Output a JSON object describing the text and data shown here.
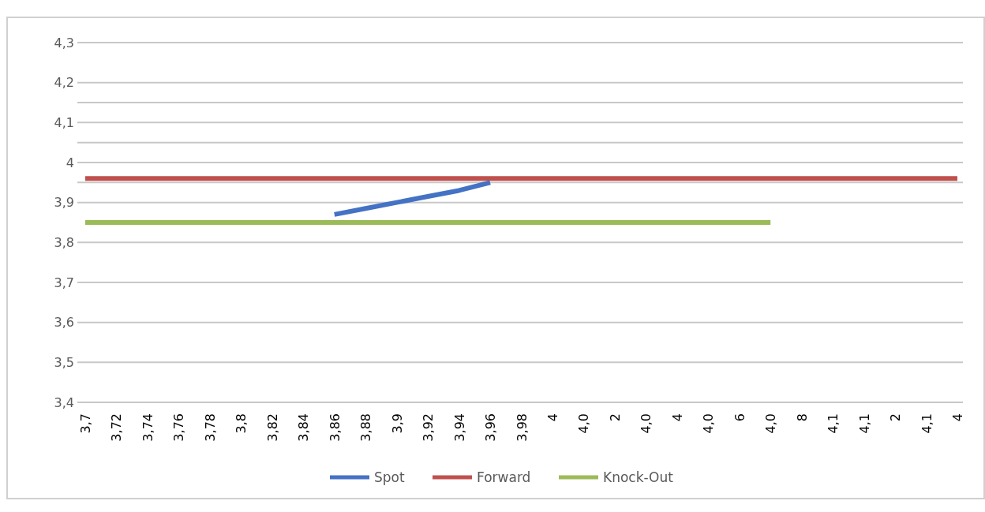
{
  "chart_data": {
    "type": "line",
    "categories": [
      "3,7",
      "3,72",
      "3,74",
      "3,76",
      "3,78",
      "3,8",
      "3,82",
      "3,84",
      "3,86",
      "3,88",
      "3,9",
      "3,92",
      "3,94",
      "3,96",
      "3,98",
      "4",
      "4,0",
      "2",
      "4,0",
      "4",
      "4,0",
      "6",
      "4,0",
      "8",
      "4,1",
      "4,1",
      "2",
      "4,1",
      "4"
    ],
    "series": [
      {
        "name": "Spot",
        "color": "#4472c4",
        "values": [
          null,
          null,
          null,
          null,
          null,
          null,
          null,
          null,
          3.87,
          3.885,
          3.9,
          3.915,
          3.93,
          3.95,
          null,
          null,
          null,
          null,
          null,
          null,
          null,
          null,
          null,
          null,
          null,
          null,
          null,
          null,
          null
        ]
      },
      {
        "name": "Forward",
        "color": "#c0504d",
        "values": [
          3.96,
          3.96,
          3.96,
          3.96,
          3.96,
          3.96,
          3.96,
          3.96,
          3.96,
          3.96,
          3.96,
          3.96,
          3.96,
          3.96,
          3.96,
          3.96,
          3.96,
          3.96,
          3.96,
          3.96,
          3.96,
          3.96,
          3.96,
          3.96,
          3.96,
          3.96,
          3.96,
          3.96,
          3.96
        ]
      },
      {
        "name": "Knock-Out",
        "color": "#9bbb59",
        "values": [
          3.85,
          3.85,
          3.85,
          3.85,
          3.85,
          3.85,
          3.85,
          3.85,
          3.85,
          3.85,
          3.85,
          3.85,
          3.85,
          3.85,
          3.85,
          3.85,
          3.85,
          3.85,
          3.85,
          3.85,
          3.85,
          3.85,
          3.85,
          null,
          null,
          null,
          null,
          null,
          null
        ]
      }
    ],
    "ylim": [
      3.4,
      4.3
    ],
    "yticks": [
      {
        "value": 3.4,
        "label": "3,4"
      },
      {
        "value": 3.5,
        "label": "3,5"
      },
      {
        "value": 3.6,
        "label": "3,6"
      },
      {
        "value": 3.7,
        "label": "3,7"
      },
      {
        "value": 3.8,
        "label": "3,8"
      },
      {
        "value": 3.9,
        "label": "3,9"
      },
      {
        "value": 3.95,
        "label": null
      },
      4,
      {
        "value": 4.05,
        "label": null
      },
      {
        "value": 4.1,
        "label": "4,1"
      },
      {
        "value": 4.15,
        "label": null
      },
      {
        "value": 4.2,
        "label": "4,2"
      },
      {
        "value": 4.3,
        "label": "4,3"
      }
    ],
    "grid": "y",
    "legend": "bottom",
    "marker": "none",
    "line_style": "solid"
  }
}
